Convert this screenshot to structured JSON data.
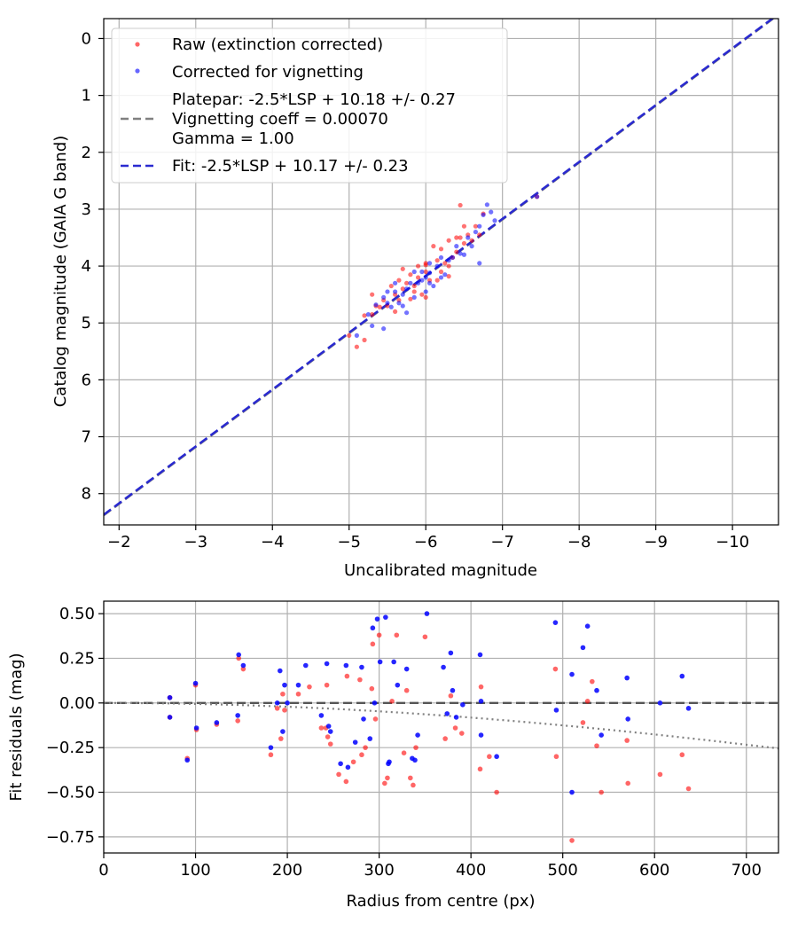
{
  "chart_data": [
    {
      "type": "scatter",
      "xlabel": "Uncalibrated magnitude",
      "ylabel": "Catalog magnitude (GAIA G band)",
      "xlim": [
        -1.8,
        -10.6
      ],
      "ylim": [
        8.55,
        -0.35
      ],
      "x_ticks": [
        -2,
        -3,
        -4,
        -5,
        -6,
        -7,
        -8,
        -9,
        -10
      ],
      "x_tick_labels": [
        "−2",
        "−3",
        "−4",
        "−5",
        "−6",
        "−7",
        "−8",
        "−9",
        "−10"
      ],
      "y_ticks": [
        0,
        1,
        2,
        3,
        4,
        5,
        6,
        7,
        8
      ],
      "y_tick_labels": [
        "0",
        "1",
        "2",
        "3",
        "4",
        "5",
        "6",
        "7",
        "8"
      ],
      "grid": true,
      "legend": {
        "position": "top-left",
        "entries": [
          {
            "label": "Raw (extinction corrected)",
            "marker": "dot",
            "color": "#ff0000"
          },
          {
            "label": "Corrected for vignetting",
            "marker": "dot",
            "color": "#0000ff"
          },
          {
            "label": "Platepar: -2.5*LSP + 10.18 +/- 0.27",
            "marker": "none"
          },
          {
            "label": "Vignetting coeff = 0.00070",
            "marker": "dashed-line",
            "color": "#808080"
          },
          {
            "label": "Gamma = 1.00",
            "marker": "none"
          },
          {
            "label": "Fit: -2.5*LSP + 10.17 +/- 0.23",
            "marker": "dashed-line",
            "color": "#2a2ad0"
          }
        ]
      },
      "lines": [
        {
          "name": "Platepar",
          "slope": 1.0,
          "intercept": 10.18,
          "color": "#808080",
          "style": "dashed"
        },
        {
          "name": "Fit",
          "slope": 1.0,
          "intercept": 10.17,
          "color": "#2a2ad0",
          "style": "dashed"
        }
      ],
      "series": [
        {
          "name": "Raw (extinction corrected)",
          "color": "#ff0000",
          "points": [
            [
              -5.0,
              5.22
            ],
            [
              -5.1,
              5.42
            ],
            [
              -5.2,
              5.3
            ],
            [
              -5.2,
              4.87
            ],
            [
              -5.3,
              4.85
            ],
            [
              -5.35,
              4.7
            ],
            [
              -5.3,
              4.5
            ],
            [
              -5.4,
              4.72
            ],
            [
              -5.45,
              4.6
            ],
            [
              -5.5,
              4.7
            ],
            [
              -5.55,
              4.35
            ],
            [
              -5.6,
              4.5
            ],
            [
              -5.6,
              4.8
            ],
            [
              -5.65,
              4.25
            ],
            [
              -5.65,
              4.6
            ],
            [
              -5.7,
              4.4
            ],
            [
              -5.7,
              4.05
            ],
            [
              -5.75,
              4.3
            ],
            [
              -5.8,
              4.15
            ],
            [
              -5.8,
              4.58
            ],
            [
              -5.85,
              4.35
            ],
            [
              -5.9,
              4.2
            ],
            [
              -5.9,
              4.0
            ],
            [
              -5.95,
              4.5
            ],
            [
              -6.0,
              3.95
            ],
            [
              -6.0,
              4.1
            ],
            [
              -6.05,
              4.25
            ],
            [
              -6.0,
              4.55
            ],
            [
              -6.1,
              3.65
            ],
            [
              -6.15,
              3.9
            ],
            [
              -6.15,
              4.25
            ],
            [
              -6.2,
              3.7
            ],
            [
              -6.2,
              4.1
            ],
            [
              -6.25,
              3.95
            ],
            [
              -6.3,
              3.55
            ],
            [
              -6.3,
              4.0
            ],
            [
              -6.35,
              3.85
            ],
            [
              -6.4,
              3.5
            ],
            [
              -6.4,
              3.75
            ],
            [
              -6.45,
              3.5
            ],
            [
              -6.5,
              3.3
            ],
            [
              -6.5,
              3.6
            ],
            [
              -6.55,
              3.45
            ],
            [
              -6.6,
              3.55
            ],
            [
              -6.65,
              3.3
            ],
            [
              -6.7,
              3.45
            ],
            [
              -6.75,
              3.08
            ],
            [
              -6.45,
              2.93
            ],
            [
              -7.45,
              2.78
            ],
            [
              -6.0,
              3.98
            ],
            [
              -5.85,
              4.45
            ],
            [
              -6.3,
              4.18
            ]
          ]
        },
        {
          "name": "Corrected for vignetting",
          "color": "#0000ff",
          "points": [
            [
              -5.1,
              5.22
            ],
            [
              -5.25,
              4.85
            ],
            [
              -5.3,
              5.05
            ],
            [
              -5.35,
              4.68
            ],
            [
              -5.45,
              4.55
            ],
            [
              -5.45,
              5.1
            ],
            [
              -5.5,
              4.65
            ],
            [
              -5.55,
              4.72
            ],
            [
              -5.6,
              4.45
            ],
            [
              -5.6,
              4.3
            ],
            [
              -5.65,
              4.65
            ],
            [
              -5.7,
              4.7
            ],
            [
              -5.7,
              4.5
            ],
            [
              -5.75,
              4.4
            ],
            [
              -5.8,
              4.3
            ],
            [
              -5.85,
              4.55
            ],
            [
              -5.85,
              4.1
            ],
            [
              -5.9,
              4.3
            ],
            [
              -5.95,
              4.1
            ],
            [
              -5.95,
              4.25
            ],
            [
              -6.0,
              4.2
            ],
            [
              -6.0,
              4.45
            ],
            [
              -6.05,
              3.95
            ],
            [
              -6.05,
              4.3
            ],
            [
              -6.1,
              4.35
            ],
            [
              -6.15,
              4.0
            ],
            [
              -6.2,
              3.85
            ],
            [
              -6.2,
              4.2
            ],
            [
              -6.25,
              4.15
            ],
            [
              -6.3,
              3.9
            ],
            [
              -6.35,
              3.85
            ],
            [
              -6.4,
              3.65
            ],
            [
              -6.45,
              3.78
            ],
            [
              -6.5,
              3.8
            ],
            [
              -6.55,
              3.5
            ],
            [
              -6.6,
              3.65
            ],
            [
              -6.65,
              3.4
            ],
            [
              -6.7,
              3.3
            ],
            [
              -6.75,
              3.1
            ],
            [
              -6.8,
              2.92
            ],
            [
              -6.85,
              3.05
            ],
            [
              -6.9,
              3.2
            ],
            [
              -6.7,
              3.95
            ],
            [
              -5.75,
              4.82
            ],
            [
              -5.5,
              4.45
            ],
            [
              -6.05,
              4.12
            ],
            [
              -7.45,
              2.78
            ]
          ]
        }
      ]
    },
    {
      "type": "scatter",
      "xlabel": "Radius from centre (px)",
      "ylabel": "Fit residuals (mag)",
      "xlim": [
        0,
        735
      ],
      "ylim": [
        -0.84,
        0.57
      ],
      "x_ticks": [
        0,
        100,
        200,
        300,
        400,
        500,
        600,
        700
      ],
      "x_tick_labels": [
        "0",
        "100",
        "200",
        "300",
        "400",
        "500",
        "600",
        "700"
      ],
      "y_ticks": [
        0.5,
        0.25,
        0.0,
        -0.25,
        -0.5,
        -0.75
      ],
      "y_tick_labels": [
        "0.50",
        "0.25",
        "0.00",
        "−0.25",
        "−0.50",
        "−0.75"
      ],
      "grid": true,
      "reference_lines": [
        {
          "name": "zero",
          "y": 0.0,
          "color": "#555555",
          "style": "dashed"
        },
        {
          "name": "vignetting model",
          "coeff": 0.0007,
          "color": "#808080",
          "style": "dotted"
        }
      ],
      "series": [
        {
          "name": "Raw (extinction corrected)",
          "color": "#ff0000",
          "points": [
            [
              72,
              0.03
            ],
            [
              72,
              -0.08
            ],
            [
              91,
              -0.31
            ],
            [
              100,
              0.1
            ],
            [
              101,
              -0.15
            ],
            [
              123,
              -0.12
            ],
            [
              146,
              -0.1
            ],
            [
              147,
              0.25
            ],
            [
              152,
              0.19
            ],
            [
              182,
              -0.29
            ],
            [
              189,
              -0.03
            ],
            [
              193,
              -0.2
            ],
            [
              195,
              0.05
            ],
            [
              197,
              -0.04
            ],
            [
              212,
              0.05
            ],
            [
              224,
              0.09
            ],
            [
              237,
              -0.14
            ],
            [
              242,
              -0.14
            ],
            [
              244,
              -0.19
            ],
            [
              247,
              -0.23
            ],
            [
              243,
              0.1
            ],
            [
              256,
              -0.4
            ],
            [
              264,
              -0.44
            ],
            [
              265,
              0.15
            ],
            [
              272,
              -0.33
            ],
            [
              279,
              0.13
            ],
            [
              281,
              -0.29
            ],
            [
              285,
              -0.25
            ],
            [
              292,
              0.08
            ],
            [
              293,
              0.33
            ],
            [
              296,
              -0.09
            ],
            [
              300,
              0.38
            ],
            [
              306,
              -0.45
            ],
            [
              309,
              -0.42
            ],
            [
              314,
              0.01
            ],
            [
              319,
              0.38
            ],
            [
              327,
              -0.28
            ],
            [
              330,
              0.07
            ],
            [
              334,
              -0.42
            ],
            [
              337,
              -0.46
            ],
            [
              340,
              -0.25
            ],
            [
              350,
              0.37
            ],
            [
              372,
              -0.2
            ],
            [
              378,
              0.04
            ],
            [
              383,
              -0.14
            ],
            [
              390,
              -0.17
            ],
            [
              410,
              -0.37
            ],
            [
              411,
              0.09
            ],
            [
              420,
              -0.3
            ],
            [
              428,
              -0.5
            ],
            [
              492,
              0.19
            ],
            [
              493,
              -0.3
            ],
            [
              510,
              -0.77
            ],
            [
              522,
              -0.11
            ],
            [
              527,
              0.01
            ],
            [
              532,
              0.12
            ],
            [
              537,
              -0.24
            ],
            [
              542,
              -0.5
            ],
            [
              570,
              -0.21
            ],
            [
              571,
              -0.45
            ],
            [
              606,
              -0.4
            ],
            [
              630,
              -0.29
            ],
            [
              637,
              -0.48
            ]
          ]
        },
        {
          "name": "Corrected for vignetting",
          "color": "#0000ff",
          "points": [
            [
              72,
              0.03
            ],
            [
              72,
              -0.08
            ],
            [
              91,
              -0.32
            ],
            [
              100,
              0.11
            ],
            [
              101,
              -0.14
            ],
            [
              123,
              -0.11
            ],
            [
              146,
              -0.07
            ],
            [
              147,
              0.27
            ],
            [
              152,
              0.21
            ],
            [
              182,
              -0.25
            ],
            [
              189,
              0.0
            ],
            [
              192,
              0.18
            ],
            [
              195,
              -0.16
            ],
            [
              197,
              0.1
            ],
            [
              200,
              0.0
            ],
            [
              212,
              0.1
            ],
            [
              220,
              0.21
            ],
            [
              237,
              -0.07
            ],
            [
              243,
              0.22
            ],
            [
              245,
              -0.13
            ],
            [
              247,
              -0.16
            ],
            [
              258,
              -0.34
            ],
            [
              264,
              0.21
            ],
            [
              266,
              -0.36
            ],
            [
              274,
              -0.22
            ],
            [
              281,
              0.2
            ],
            [
              283,
              -0.09
            ],
            [
              290,
              -0.2
            ],
            [
              293,
              0.42
            ],
            [
              295,
              0.0
            ],
            [
              298,
              0.47
            ],
            [
              301,
              0.23
            ],
            [
              307,
              0.48
            ],
            [
              310,
              -0.34
            ],
            [
              311,
              -0.33
            ],
            [
              316,
              0.23
            ],
            [
              320,
              0.1
            ],
            [
              330,
              0.19
            ],
            [
              336,
              -0.31
            ],
            [
              339,
              -0.32
            ],
            [
              342,
              -0.18
            ],
            [
              352,
              0.5
            ],
            [
              370,
              0.2
            ],
            [
              374,
              -0.06
            ],
            [
              378,
              0.28
            ],
            [
              380,
              0.07
            ],
            [
              384,
              -0.08
            ],
            [
              391,
              -0.01
            ],
            [
              410,
              0.27
            ],
            [
              411,
              0.01
            ],
            [
              411,
              -0.18
            ],
            [
              428,
              -0.3
            ],
            [
              492,
              0.45
            ],
            [
              493,
              -0.04
            ],
            [
              510,
              -0.5
            ],
            [
              522,
              0.31
            ],
            [
              527,
              0.43
            ],
            [
              537,
              0.07
            ],
            [
              542,
              -0.18
            ],
            [
              570,
              0.14
            ],
            [
              571,
              -0.09
            ],
            [
              606,
              0.0
            ],
            [
              630,
              0.15
            ],
            [
              637,
              -0.03
            ],
            [
              510,
              0.16
            ]
          ]
        }
      ]
    }
  ]
}
